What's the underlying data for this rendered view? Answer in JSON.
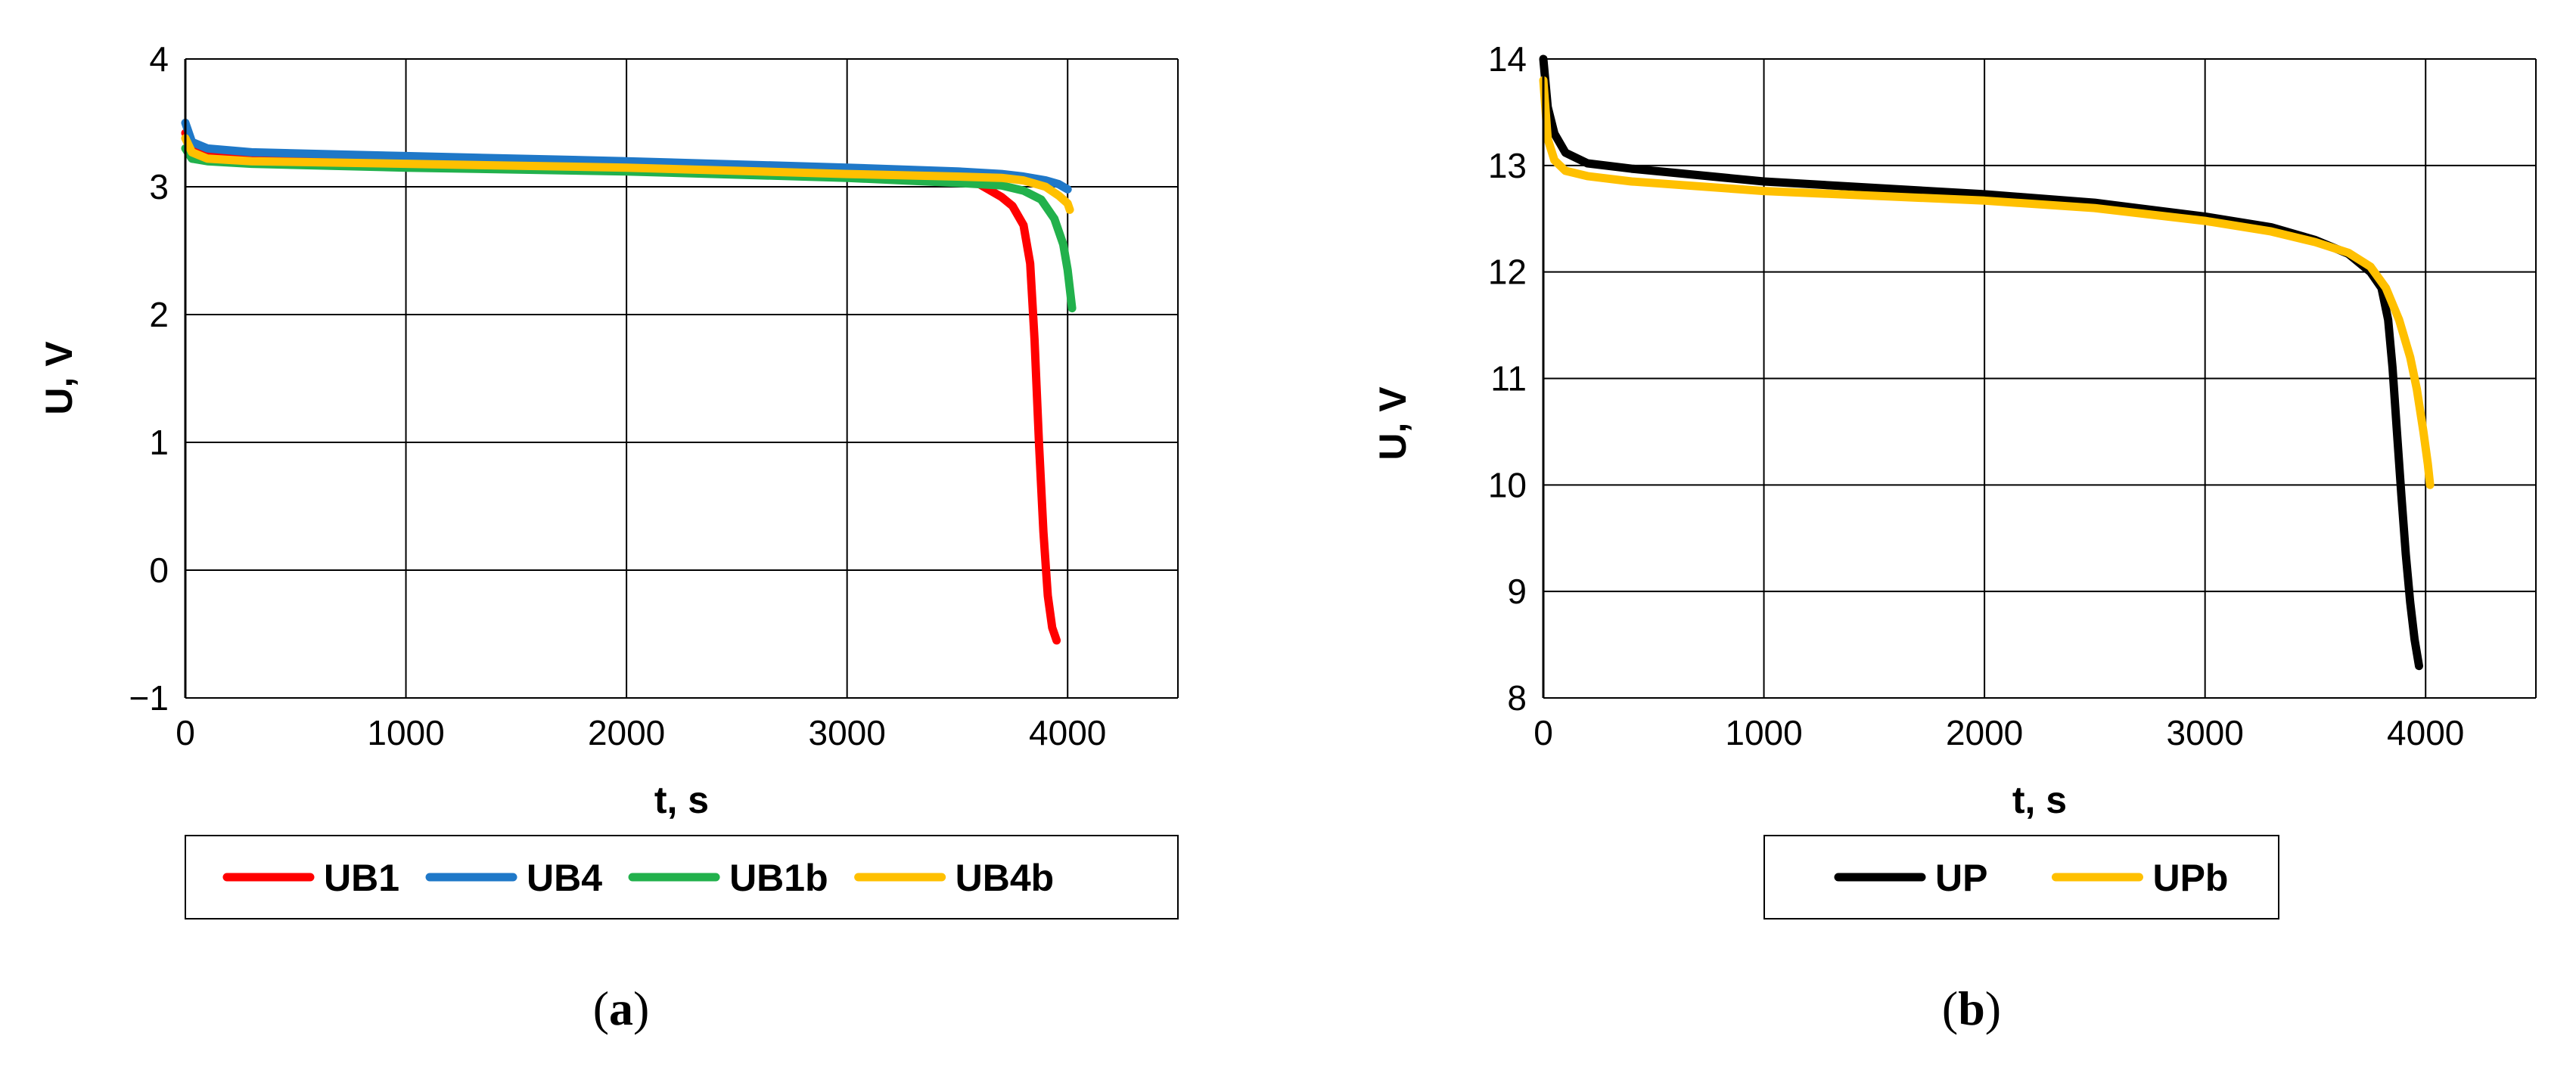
{
  "chart_data": [
    {
      "type": "line",
      "panel_label": "a",
      "xlabel": "t, s",
      "ylabel": "U, V",
      "xlim": [
        0,
        4500
      ],
      "ylim": [
        -1,
        4
      ],
      "x_ticks": [
        "0",
        "1000",
        "2000",
        "3000",
        "4000"
      ],
      "y_ticks": [
        "4",
        "3",
        "2",
        "1",
        "0",
        "−1"
      ],
      "grid": true,
      "legend_position": "bottom",
      "series": [
        {
          "name": "UB1",
          "color": "#ff0000",
          "x": [
            0,
            30,
            100,
            300,
            1000,
            2000,
            3000,
            3500,
            3600,
            3700,
            3750,
            3800,
            3830,
            3850,
            3870,
            3890,
            3910,
            3930,
            3950
          ],
          "y": [
            3.42,
            3.33,
            3.28,
            3.25,
            3.23,
            3.18,
            3.1,
            3.05,
            3.02,
            2.92,
            2.85,
            2.7,
            2.4,
            1.8,
            1.0,
            0.3,
            -0.2,
            -0.45,
            -0.55
          ]
        },
        {
          "name": "UB4",
          "color": "#1f78c8",
          "x": [
            0,
            30,
            100,
            300,
            1000,
            2000,
            3000,
            3500,
            3700,
            3800,
            3900,
            3960,
            4000
          ],
          "y": [
            3.5,
            3.35,
            3.3,
            3.27,
            3.24,
            3.2,
            3.15,
            3.12,
            3.1,
            3.08,
            3.05,
            3.02,
            2.98
          ]
        },
        {
          "name": "UB1b",
          "color": "#22b14c",
          "x": [
            0,
            30,
            100,
            300,
            1000,
            2000,
            3000,
            3500,
            3700,
            3800,
            3880,
            3940,
            3980,
            4000,
            4020
          ],
          "y": [
            3.3,
            3.22,
            3.2,
            3.18,
            3.15,
            3.12,
            3.07,
            3.03,
            3.01,
            2.97,
            2.9,
            2.75,
            2.55,
            2.35,
            2.05
          ]
        },
        {
          "name": "UB4b",
          "color": "#ffc000",
          "x": [
            0,
            30,
            100,
            300,
            1000,
            2000,
            3000,
            3500,
            3700,
            3800,
            3900,
            3960,
            4000,
            4010
          ],
          "y": [
            3.38,
            3.27,
            3.22,
            3.2,
            3.18,
            3.15,
            3.1,
            3.08,
            3.07,
            3.05,
            3.0,
            2.93,
            2.87,
            2.82
          ]
        }
      ]
    },
    {
      "type": "line",
      "panel_label": "b",
      "xlabel": "t, s",
      "ylabel": "U, V",
      "xlim": [
        0,
        4500
      ],
      "ylim": [
        8,
        14
      ],
      "x_ticks": [
        "0",
        "1000",
        "2000",
        "3000",
        "4000"
      ],
      "y_ticks": [
        "14",
        "13",
        "12",
        "11",
        "10",
        "9",
        "8"
      ],
      "grid": true,
      "legend_position": "bottom",
      "series": [
        {
          "name": "UP",
          "color": "#000000",
          "x": [
            0,
            20,
            50,
            100,
            200,
            400,
            1000,
            2000,
            2500,
            3000,
            3300,
            3500,
            3650,
            3750,
            3800,
            3830,
            3850,
            3870,
            3890,
            3910,
            3930,
            3950,
            3970
          ],
          "y": [
            14.0,
            13.55,
            13.3,
            13.12,
            13.02,
            12.97,
            12.85,
            12.73,
            12.65,
            12.52,
            12.42,
            12.3,
            12.17,
            12.0,
            11.85,
            11.55,
            11.1,
            10.5,
            9.9,
            9.35,
            8.9,
            8.55,
            8.3
          ]
        },
        {
          "name": "UPb",
          "color": "#ffc000",
          "x": [
            0,
            20,
            50,
            100,
            200,
            400,
            1000,
            2000,
            2500,
            3000,
            3300,
            3500,
            3650,
            3750,
            3820,
            3880,
            3930,
            3960,
            3990,
            4010,
            4020
          ],
          "y": [
            13.8,
            13.25,
            13.05,
            12.95,
            12.9,
            12.85,
            12.76,
            12.67,
            12.6,
            12.48,
            12.38,
            12.28,
            12.18,
            12.05,
            11.85,
            11.55,
            11.2,
            10.9,
            10.5,
            10.2,
            10.0
          ]
        }
      ]
    }
  ]
}
